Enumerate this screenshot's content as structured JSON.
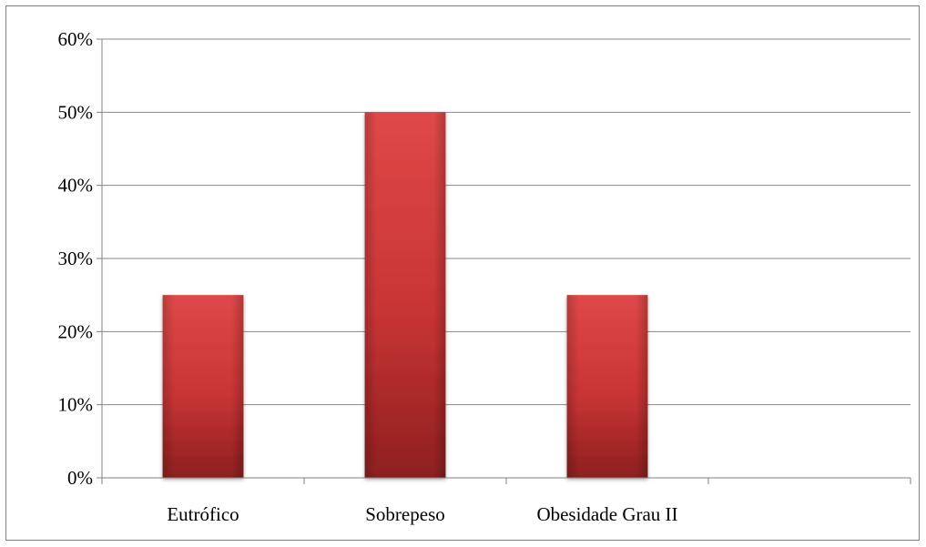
{
  "chart_data": {
    "type": "bar",
    "title": "",
    "xlabel": "",
    "ylabel": "",
    "categories": [
      "Eutrófico",
      "Sobrepeso",
      "Obesidade Grau II",
      ""
    ],
    "values": [
      25,
      50,
      25,
      null
    ],
    "ylim": [
      0,
      60
    ],
    "y_ticks": [
      0,
      10,
      20,
      30,
      40,
      50,
      60
    ],
    "y_tick_labels": [
      "0%",
      "10%",
      "20%",
      "30%",
      "40%",
      "50%",
      "60%"
    ],
    "grid": true,
    "legend": "none",
    "colors": {
      "bar_light": "#e04848",
      "bar_mid": "#c83434",
      "bar_dark": "#8e1f1f",
      "gridline": "#888888",
      "axis": "#808080"
    }
  }
}
